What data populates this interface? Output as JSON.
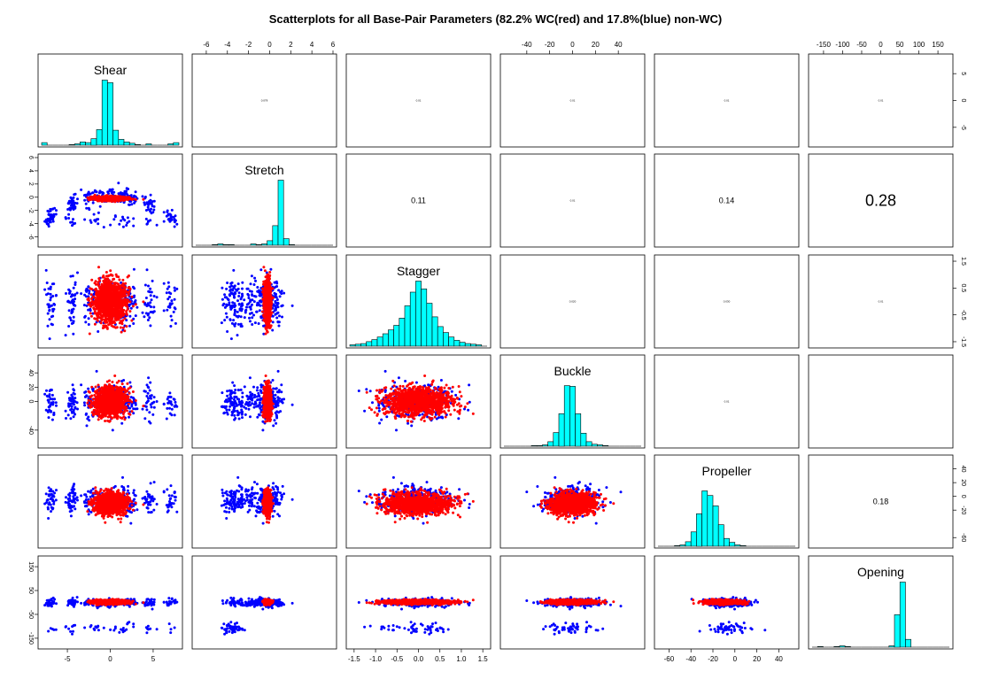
{
  "chart_data": {
    "type": "scatter",
    "title": "Scatterplots for all Base-Pair Parameters (82.2% WC(red) and 17.8%(blue) non-WC)",
    "variables": [
      "Shear",
      "Stretch",
      "Stagger",
      "Buckle",
      "Propeller",
      "Opening"
    ],
    "series": [
      {
        "name": "WC",
        "color": "#ff0000",
        "fraction": 82.2
      },
      {
        "name": "non-WC",
        "color": "#0000ff",
        "fraction": 17.8
      }
    ],
    "hist_color": "#00ffff",
    "ranges": {
      "Shear": [
        -8,
        8
      ],
      "Stretch": [
        -7,
        6
      ],
      "Stagger": [
        -1.6,
        1.6
      ],
      "Buckle": [
        -60,
        60
      ],
      "Propeller": [
        -70,
        55
      ],
      "Opening": [
        -180,
        180
      ]
    },
    "axis_ticks": {
      "Shear": [
        "-5",
        "0",
        "5"
      ],
      "Stretch": [
        "-6",
        "-4",
        "-2",
        "0",
        "2",
        "4",
        "6"
      ],
      "Stagger": [
        "-1.5",
        "-1.0",
        "-0.5",
        "0.0",
        "0.5",
        "1.0",
        "1.5"
      ],
      "Buckle": [
        "-40",
        "-20",
        "0",
        "20",
        "40"
      ],
      "Propeller": [
        "-60",
        "-40",
        "-20",
        "0",
        "20",
        "40"
      ],
      "Opening": [
        "-150",
        "-100",
        "-50",
        "0",
        "50",
        "100",
        "150"
      ]
    },
    "left_axis_ticks": {
      "Stretch": [
        "6",
        "4",
        "2",
        "0",
        "-2",
        "-4",
        "-6"
      ],
      "Buckle": [
        "40",
        "20",
        "0",
        "-40"
      ],
      "Opening": [
        "150",
        "50",
        "-50",
        "-150"
      ]
    },
    "right_axis_ticks": {
      "Shear": [
        "5",
        "0",
        "-5"
      ],
      "Stagger": [
        "1.5",
        "0.5",
        "-0.5",
        "-1.5"
      ],
      "Propeller": [
        "40",
        "20",
        "0",
        "-20",
        "-60"
      ]
    },
    "correlations": [
      {
        "row": 0,
        "col": 1,
        "value": "0.078"
      },
      {
        "row": 0,
        "col": 2,
        "value": "0.01"
      },
      {
        "row": 0,
        "col": 3,
        "value": "0.01"
      },
      {
        "row": 0,
        "col": 4,
        "value": "0.01"
      },
      {
        "row": 0,
        "col": 5,
        "value": "0.01"
      },
      {
        "row": 1,
        "col": 2,
        "value": "0.11"
      },
      {
        "row": 1,
        "col": 3,
        "value": "0.01"
      },
      {
        "row": 1,
        "col": 4,
        "value": "0.14"
      },
      {
        "row": 1,
        "col": 5,
        "value": "0.28"
      },
      {
        "row": 2,
        "col": 3,
        "value": "0.020"
      },
      {
        "row": 2,
        "col": 4,
        "value": "0.030"
      },
      {
        "row": 2,
        "col": 5,
        "value": "0.01"
      },
      {
        "row": 3,
        "col": 4,
        "value": "0.01"
      },
      {
        "row": 4,
        "col": 5,
        "value": "0.18"
      }
    ],
    "histograms": {
      "Shear": [
        0.04,
        0.0,
        0.0,
        0.0,
        0.0,
        0.01,
        0.02,
        0.05,
        0.04,
        0.1,
        0.24,
        1.0,
        0.96,
        0.23,
        0.09,
        0.05,
        0.03,
        0.01,
        0.0,
        0.02,
        0.0,
        0.0,
        0.0,
        0.02,
        0.04
      ],
      "Stretch": [
        0.0,
        0.0,
        0.0,
        0.01,
        0.02,
        0.01,
        0.01,
        0.0,
        0.0,
        0.0,
        0.02,
        0.01,
        0.02,
        0.07,
        0.3,
        1.0,
        0.1,
        0.01,
        0.0,
        0.0,
        0.0,
        0.0,
        0.0,
        0.0,
        0.0
      ],
      "Stagger": [
        0.02,
        0.03,
        0.04,
        0.07,
        0.1,
        0.14,
        0.19,
        0.25,
        0.32,
        0.43,
        0.62,
        0.83,
        1.0,
        0.88,
        0.66,
        0.45,
        0.3,
        0.21,
        0.14,
        0.09,
        0.06,
        0.04,
        0.03,
        0.02,
        0.0
      ],
      "Buckle": [
        0.0,
        0.0,
        0.0,
        0.0,
        0.0,
        0.01,
        0.01,
        0.02,
        0.07,
        0.21,
        0.5,
        0.93,
        0.92,
        0.5,
        0.2,
        0.07,
        0.03,
        0.02,
        0.01,
        0.0,
        0.0,
        0.0,
        0.0,
        0.0,
        0.0
      ],
      "Propeller": [
        0.0,
        0.0,
        0.0,
        0.01,
        0.02,
        0.07,
        0.22,
        0.5,
        0.85,
        0.78,
        0.62,
        0.33,
        0.12,
        0.06,
        0.02,
        0.01,
        0.0,
        0.0,
        0.0,
        0.0,
        0.0,
        0.0,
        0.0,
        0.0,
        0.0
      ],
      "Opening": [
        0.0,
        0.01,
        0.0,
        0.0,
        0.01,
        0.02,
        0.01,
        0.0,
        0.0,
        0.0,
        0.0,
        0.0,
        0.0,
        0.0,
        0.02,
        0.5,
        1.0,
        0.12,
        0.0,
        0.0,
        0.0,
        0.0,
        0.0,
        0.0,
        0.0
      ]
    }
  }
}
